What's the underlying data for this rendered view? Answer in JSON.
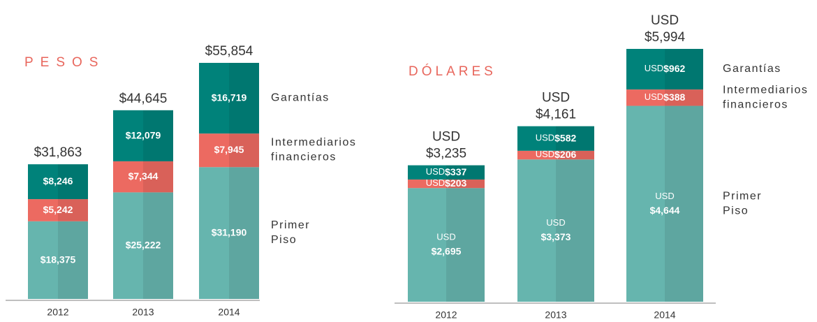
{
  "chart_data": [
    {
      "type": "stacked_bar",
      "title": "PESOS",
      "categories": [
        "2012",
        "2013",
        "2014"
      ],
      "series": [
        {
          "name": "Primer Piso",
          "color": "#66b5ae",
          "values": [
            18375,
            25222,
            31190
          ],
          "value_labels": [
            "$18,375",
            "$25,222",
            "$31,190"
          ]
        },
        {
          "name": "Intermediarios financieros",
          "color": "#ec6a61",
          "values": [
            5242,
            7344,
            7945
          ],
          "value_labels": [
            "$5,242",
            "$7,344",
            "$7,945"
          ]
        },
        {
          "name": "Garantías",
          "color": "#00827a",
          "values": [
            8246,
            12079,
            16719
          ],
          "value_labels": [
            "$8,246",
            "$12,079",
            "$16,719"
          ]
        }
      ],
      "totals": [
        31863,
        44645,
        55854
      ],
      "total_labels": [
        "$31,863",
        "$44,645",
        "$55,854"
      ]
    },
    {
      "type": "stacked_bar",
      "title": "DÓLARES",
      "categories": [
        "2012",
        "2013",
        "2014"
      ],
      "series": [
        {
          "name": "Primer Piso",
          "color": "#66b5ae",
          "values": [
            2695,
            3373,
            4644
          ],
          "value_labels": [
            "USD $2,695",
            "USD $3,373",
            "USD $4,644"
          ]
        },
        {
          "name": "Intermediarios financieros",
          "color": "#ec6a61",
          "values": [
            203,
            206,
            388
          ],
          "value_labels": [
            "USD$203",
            "USD$206",
            "USD$388"
          ]
        },
        {
          "name": "Garantías",
          "color": "#00827a",
          "values": [
            337,
            582,
            962
          ],
          "value_labels": [
            "USD$337",
            "USD$582",
            "USD$962"
          ]
        }
      ],
      "totals": [
        3235,
        4161,
        5994
      ],
      "total_labels": [
        "USD $3,235",
        "USD $4,161",
        "USD $5,994"
      ]
    }
  ]
}
